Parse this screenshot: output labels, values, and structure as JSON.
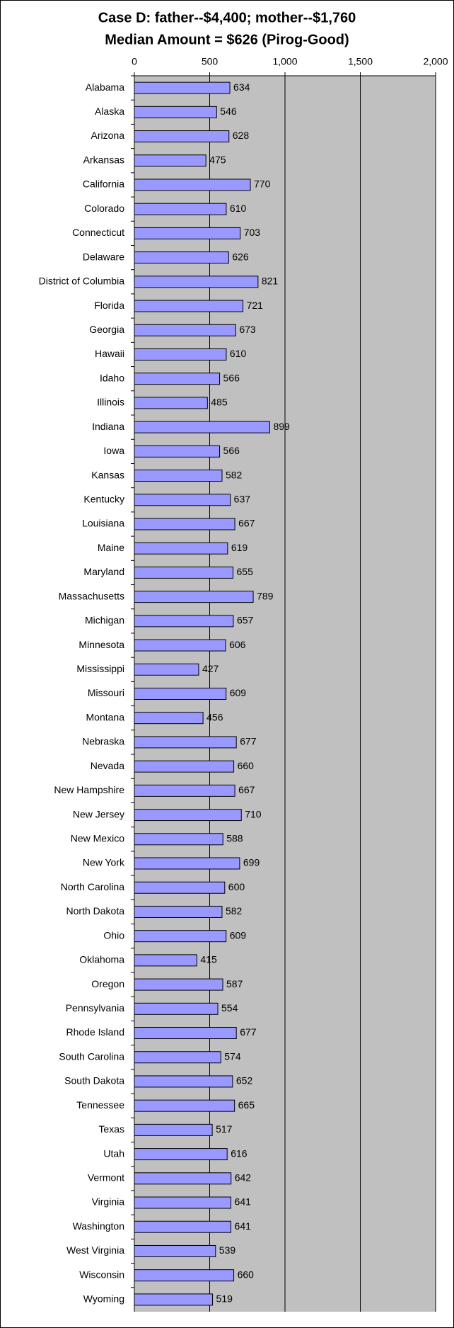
{
  "chart_data": {
    "type": "barh",
    "title": "Case D: father--$4,400; mother--$1,760",
    "subtitle": "Median Amount = $626 (Pirog-Good)",
    "categories": [
      "Alabama",
      "Alaska",
      "Arizona",
      "Arkansas",
      "California",
      "Colorado",
      "Connecticut",
      "Delaware",
      "District of Columbia",
      "Florida",
      "Georgia",
      "Hawaii",
      "Idaho",
      "Illinois",
      "Indiana",
      "Iowa",
      "Kansas",
      "Kentucky",
      "Louisiana",
      "Maine",
      "Maryland",
      "Massachusetts",
      "Michigan",
      "Minnesota",
      "Mississippi",
      "Missouri",
      "Montana",
      "Nebraska",
      "Nevada",
      "New Hampshire",
      "New Jersey",
      "New Mexico",
      "New York",
      "North Carolina",
      "North Dakota",
      "Ohio",
      "Oklahoma",
      "Oregon",
      "Pennsylvania",
      "Rhode Island",
      "South Carolina",
      "South Dakota",
      "Tennessee",
      "Texas",
      "Utah",
      "Vermont",
      "Virginia",
      "Washington",
      "West Virginia",
      "Wisconsin",
      "Wyoming"
    ],
    "values": [
      634,
      546,
      628,
      475,
      770,
      610,
      703,
      626,
      821,
      721,
      673,
      610,
      566,
      485,
      899,
      566,
      582,
      637,
      667,
      619,
      655,
      789,
      657,
      606,
      427,
      609,
      456,
      677,
      660,
      667,
      710,
      588,
      699,
      600,
      582,
      609,
      415,
      587,
      554,
      677,
      574,
      652,
      665,
      517,
      616,
      642,
      641,
      641,
      539,
      660,
      519
    ],
    "color": "#9999ff",
    "xlim": [
      0,
      2000
    ],
    "xticks": [
      0,
      500,
      {
        "value": 1000,
        "label": "1,000"
      },
      {
        "value": 1500,
        "label": "1,500"
      },
      {
        "value": 2000,
        "label": "2,000"
      }
    ],
    "grid": true
  }
}
